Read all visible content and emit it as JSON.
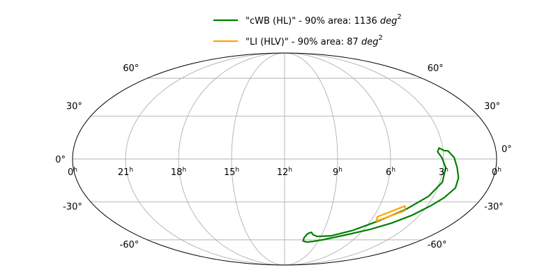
{
  "chart_data": {
    "type": "line",
    "projection": "mollweide",
    "grid": true,
    "legend_position": "top-center",
    "x_unit": "hours (right ascension)",
    "y_unit": "degrees (declination)",
    "x_ticks": [
      {
        "value": 24,
        "label": "0",
        "sup": "h"
      },
      {
        "value": 21,
        "label": "21",
        "sup": "h"
      },
      {
        "value": 18,
        "label": "18",
        "sup": "h"
      },
      {
        "value": 15,
        "label": "15",
        "sup": "h"
      },
      {
        "value": 12,
        "label": "12",
        "sup": "h"
      },
      {
        "value": 9,
        "label": "9",
        "sup": "h"
      },
      {
        "value": 6,
        "label": "6",
        "sup": "h"
      },
      {
        "value": 3,
        "label": "3",
        "sup": "h"
      },
      {
        "value": 0,
        "label": "0",
        "sup": "h"
      }
    ],
    "y_ticks": [
      {
        "value": 60,
        "label": "60°"
      },
      {
        "value": 30,
        "label": "30°"
      },
      {
        "value": 0,
        "label": "0°"
      },
      {
        "value": -30,
        "label": "-30°"
      },
      {
        "value": -60,
        "label": "-60°"
      }
    ],
    "series": [
      {
        "name": "\"cWB (HL)\" - 90% area: 1136 ",
        "name_unit": "deg",
        "name_sup": "2",
        "color": "#008000",
        "points": [
          [
            3.32,
            5.0
          ],
          [
            3.21,
            7.6
          ],
          [
            2.94,
            5.8
          ],
          [
            2.72,
            5.6
          ],
          [
            2.4,
            1.0
          ],
          [
            2.2,
            -6.0
          ],
          [
            2.0,
            -13.0
          ],
          [
            1.95,
            -20.0
          ],
          [
            2.3,
            -27.0
          ],
          [
            2.8,
            -33.0
          ],
          [
            3.5,
            -40.0
          ],
          [
            4.4,
            -46.0
          ],
          [
            5.5,
            -51.0
          ],
          [
            6.8,
            -55.0
          ],
          [
            7.9,
            -58.0
          ],
          [
            8.7,
            -60.0
          ],
          [
            9.5,
            -61.5
          ],
          [
            10.0,
            -62.0
          ],
          [
            10.35,
            -61.0
          ],
          [
            10.35,
            -58.0
          ],
          [
            10.15,
            -54.5
          ],
          [
            9.9,
            -53.5
          ],
          [
            9.7,
            -55.5
          ],
          [
            9.3,
            -57.0
          ],
          [
            8.2,
            -56.5
          ],
          [
            6.8,
            -52.0
          ],
          [
            5.4,
            -44.0
          ],
          [
            4.2,
            -35.5
          ],
          [
            3.3,
            -26.0
          ],
          [
            2.85,
            -16.0
          ],
          [
            2.85,
            -6.0
          ],
          [
            3.1,
            1.0
          ],
          [
            3.32,
            5.0
          ]
        ]
      },
      {
        "name": "\"LI (HLV)\" - 90% area: 87 ",
        "name_unit": "deg",
        "name_sup": "2",
        "color": "#FFA500",
        "points": [
          [
            5.73,
            -41.0
          ],
          [
            4.4,
            -33.0
          ],
          [
            4.2,
            -36.5
          ],
          [
            5.6,
            -44.5
          ],
          [
            5.73,
            -41.0
          ]
        ]
      }
    ]
  }
}
